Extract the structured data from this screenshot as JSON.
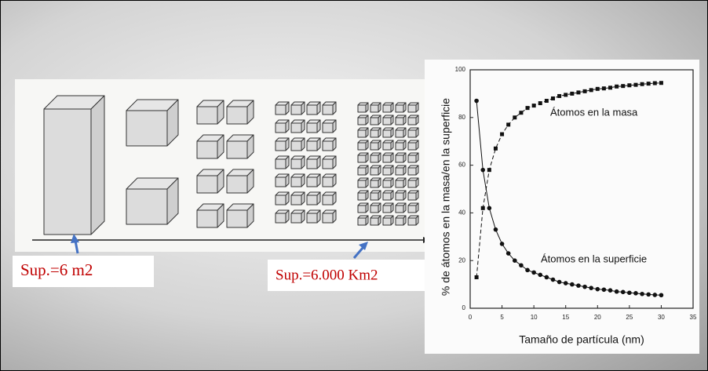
{
  "labels": [
    "Sup.=6 m2",
    "Sup.=6.000 Km2"
  ],
  "chart_data": {
    "type": "line",
    "x_label": "Tamaño de partícula (nm)",
    "y_label": "% de átomos en la masa/en la superficie",
    "x": [
      1,
      2,
      3,
      4,
      5,
      6,
      7,
      8,
      9,
      10,
      11,
      12,
      13,
      14,
      15,
      16,
      17,
      18,
      19,
      20,
      21,
      22,
      23,
      24,
      25,
      26,
      27,
      28,
      29,
      30
    ],
    "series": [
      {
        "name": "Átomos en la masa",
        "color": "#111",
        "marker": "square",
        "dash": true,
        "values": [
          13,
          42,
          58,
          67,
          73,
          77,
          80,
          82,
          84,
          85,
          86,
          87,
          88,
          89,
          89.5,
          90,
          90.5,
          91,
          91.5,
          92,
          92.2,
          92.5,
          93,
          93.2,
          93.5,
          93.7,
          94,
          94.2,
          94.4,
          94.5
        ]
      },
      {
        "name": "Átomos en la superficie",
        "color": "#111",
        "marker": "circle",
        "dash": false,
        "values": [
          87,
          58,
          42,
          33,
          27,
          23,
          20,
          18,
          16,
          15,
          14,
          13,
          12,
          11,
          10.5,
          10,
          9.5,
          9,
          8.5,
          8,
          7.8,
          7.5,
          7,
          6.8,
          6.5,
          6.3,
          6,
          5.8,
          5.6,
          5.5
        ]
      }
    ],
    "xlim": [
      0,
      35
    ],
    "ylim": [
      0,
      100
    ],
    "xticks": [
      0,
      5,
      10,
      15,
      20,
      25,
      30,
      35
    ],
    "yticks": [
      0,
      20,
      40,
      60,
      80,
      100
    ]
  }
}
